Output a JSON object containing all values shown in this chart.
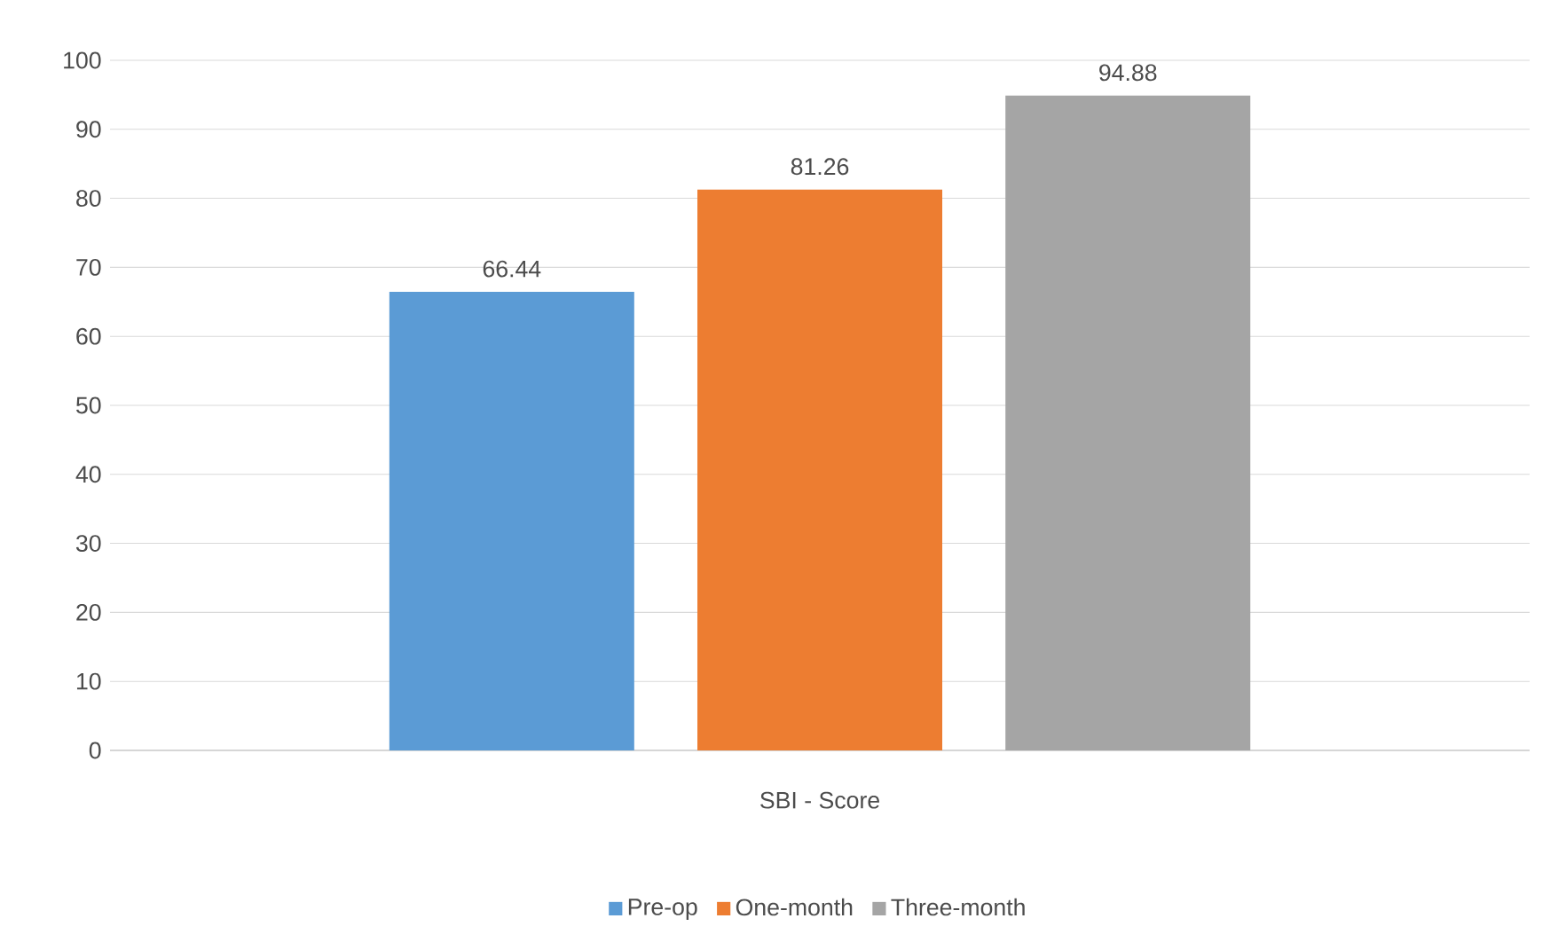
{
  "chart_data": {
    "type": "bar",
    "categories": [
      "SBI - Score"
    ],
    "series": [
      {
        "name": "Pre-op",
        "color": "#5b9bd5",
        "values": [
          66.44
        ]
      },
      {
        "name": "One-month",
        "color": "#ed7d31",
        "values": [
          81.26
        ]
      },
      {
        "name": "Three-month",
        "color": "#a5a5a5",
        "values": [
          94.88
        ]
      }
    ],
    "ylim": [
      0,
      100
    ],
    "yticks": [
      0,
      10,
      20,
      30,
      40,
      50,
      60,
      70,
      80,
      90,
      100
    ],
    "grid": "y",
    "legend": "bottom",
    "data_labels": true
  }
}
